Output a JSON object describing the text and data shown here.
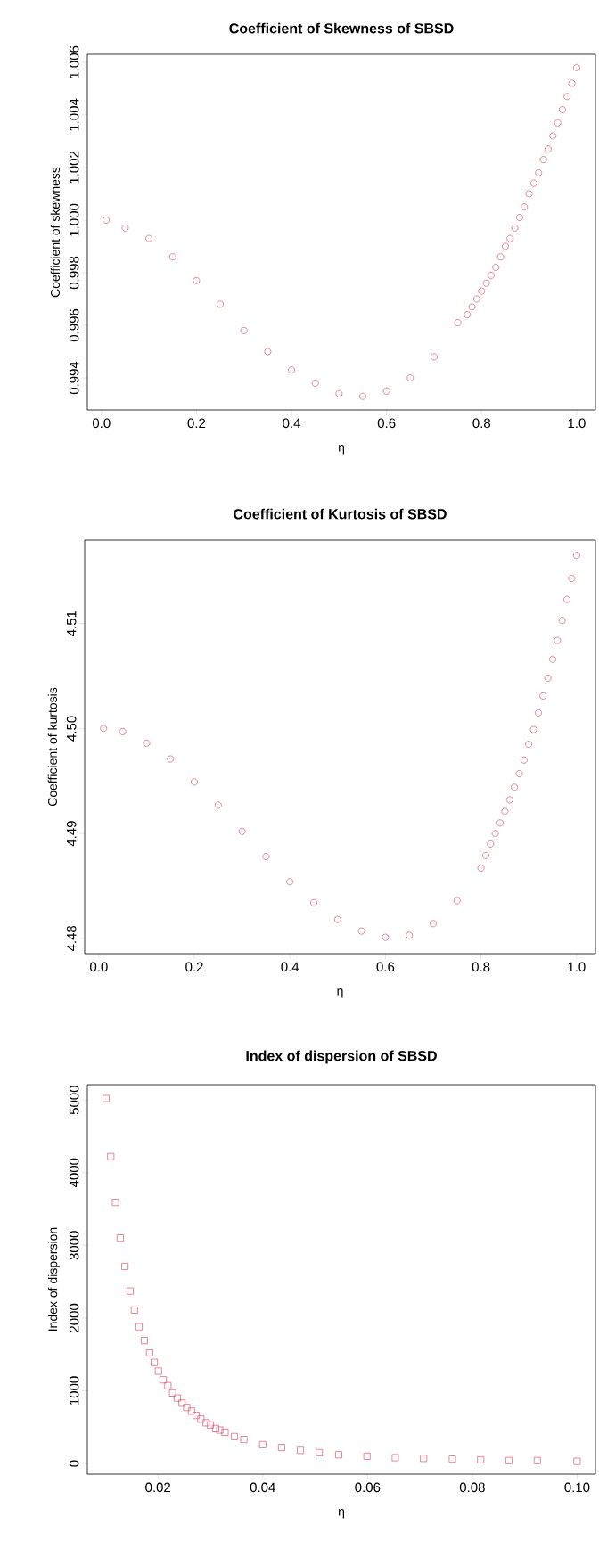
{
  "chart_data": [
    {
      "type": "scatter",
      "title": "Coefficient of Skewness of SBSD",
      "xlabel": "η",
      "ylabel": "Coefficient of skewness",
      "color": "#df536b",
      "marker": "circle",
      "x": [
        0.01,
        0.05,
        0.1,
        0.15,
        0.2,
        0.25,
        0.3,
        0.35,
        0.4,
        0.45,
        0.5,
        0.55,
        0.6,
        0.65,
        0.7,
        0.75,
        0.77,
        0.78,
        0.79,
        0.8,
        0.81,
        0.82,
        0.83,
        0.84,
        0.85,
        0.86,
        0.87,
        0.88,
        0.89,
        0.9,
        0.91,
        0.92,
        0.93,
        0.94,
        0.95,
        0.96,
        0.97,
        0.98,
        0.99,
        1.0
      ],
      "values": [
        1.0,
        0.9997,
        0.9993,
        0.9986,
        0.9977,
        0.9968,
        0.9958,
        0.995,
        0.9943,
        0.9938,
        0.9934,
        0.9933,
        0.9935,
        0.994,
        0.9948,
        0.9961,
        0.9964,
        0.9967,
        0.997,
        0.9973,
        0.9976,
        0.9979,
        0.9982,
        0.9986,
        0.999,
        0.9993,
        0.9997,
        1.0001,
        1.0005,
        1.001,
        1.0014,
        1.0018,
        1.0023,
        1.0027,
        1.0032,
        1.0037,
        1.0042,
        1.0047,
        1.0052,
        1.0058
      ],
      "xlim": [
        -0.0296,
        1.0396
      ],
      "ylim": [
        0.99278,
        1.0063
      ],
      "xticks": [
        {
          "value": 0,
          "label": "0.0"
        },
        0.2,
        0.4,
        0.6,
        0.8,
        {
          "value": 1,
          "label": "1.0"
        }
      ],
      "yticks": [
        0.994,
        0.996,
        0.998,
        {
          "value": 1,
          "label": "1.000"
        },
        1.002,
        1.004,
        1.006
      ]
    },
    {
      "type": "scatter",
      "title": "Coefficient of Kurtosis of SBSD",
      "xlabel": "η",
      "ylabel": "Coefficient of kurtosis",
      "color": "#df536b",
      "marker": "circle",
      "x": [
        0.01,
        0.05,
        0.1,
        0.15,
        0.2,
        0.25,
        0.3,
        0.35,
        0.4,
        0.45,
        0.5,
        0.55,
        0.6,
        0.65,
        0.7,
        0.75,
        0.8,
        0.81,
        0.82,
        0.83,
        0.84,
        0.85,
        0.86,
        0.87,
        0.88,
        0.89,
        0.9,
        0.91,
        0.92,
        0.93,
        0.94,
        0.95,
        0.96,
        0.97,
        0.98,
        0.99,
        1.0
      ],
      "values": [
        4.5,
        4.4997,
        4.4986,
        4.4971,
        4.4949,
        4.4927,
        4.4902,
        4.4878,
        4.4854,
        4.4834,
        4.4818,
        4.4807,
        4.4801,
        4.4803,
        4.4814,
        4.4836,
        4.4867,
        4.4879,
        4.489,
        4.49,
        4.491,
        4.4921,
        4.4932,
        4.4944,
        4.4957,
        4.497,
        4.4985,
        4.4999,
        4.5015,
        4.5031,
        4.5048,
        4.5066,
        4.5084,
        4.5103,
        4.5123,
        4.5143,
        4.5165
      ],
      "xlim": [
        -0.0296,
        1.0396
      ],
      "ylim": [
        4.47854,
        4.51796
      ],
      "xticks": [
        {
          "value": 0,
          "label": "0.0"
        },
        0.2,
        0.4,
        0.6,
        0.8,
        {
          "value": 1,
          "label": "1.0"
        }
      ],
      "yticks": [
        4.48,
        4.49,
        {
          "value": 4.5,
          "label": "4.50"
        },
        4.51
      ]
    },
    {
      "type": "scatter",
      "title": "Index of dispersion of SBSD",
      "xlabel": "η",
      "ylabel": "Index of dispersion",
      "color": "#df536b",
      "marker": "square",
      "x": [
        0.0101,
        0.011,
        0.0119,
        0.0128,
        0.0137,
        0.0147,
        0.0155,
        0.0164,
        0.0174,
        0.0184,
        0.0193,
        0.0201,
        0.021,
        0.0219,
        0.0228,
        0.0237,
        0.0246,
        0.0255,
        0.0264,
        0.0273,
        0.0282,
        0.0292,
        0.03,
        0.031,
        0.0318,
        0.0328,
        0.0346,
        0.0364,
        0.04,
        0.0436,
        0.0472,
        0.0508,
        0.0545,
        0.0599,
        0.0653,
        0.0707,
        0.0762,
        0.0816,
        0.087,
        0.0924,
        0.1
      ],
      "values": [
        5020,
        4220,
        3590,
        3100,
        2710,
        2370,
        2110,
        1880,
        1690,
        1520,
        1390,
        1270,
        1150,
        1070,
        970,
        900,
        830,
        770,
        720,
        660,
        610,
        560,
        530,
        480,
        460,
        430,
        370,
        330,
        260,
        220,
        180,
        150,
        120,
        100,
        80,
        70,
        60,
        50,
        40,
        40,
        30
      ],
      "xlim": [
        0.00653,
        0.1035
      ],
      "ylim": [
        -147,
        5210
      ],
      "xticks": [
        0.02,
        0.04,
        0.06,
        0.08,
        {
          "value": 0.1,
          "label": "0.10"
        }
      ],
      "yticks": [
        0,
        1000,
        2000,
        3000,
        4000,
        5000
      ]
    }
  ]
}
